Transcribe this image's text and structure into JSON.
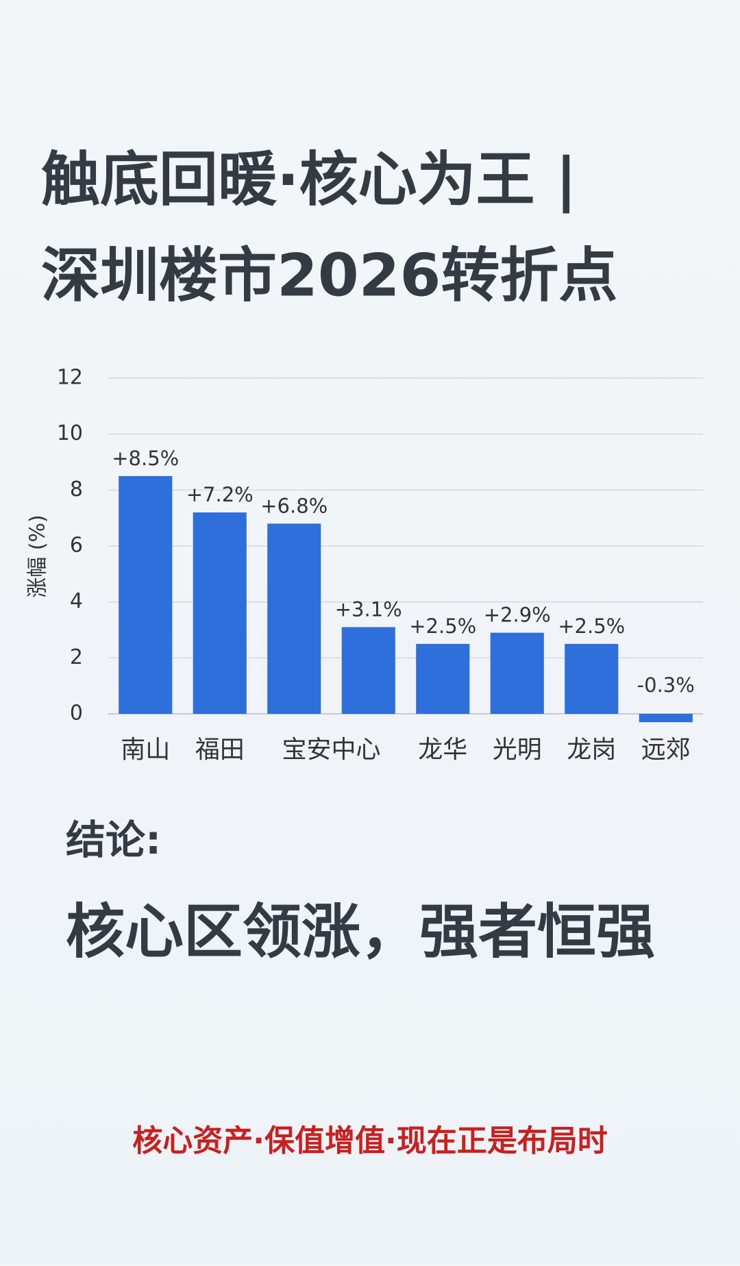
{
  "header": {
    "title_lines": [
      "触底回暖·核心为王 |",
      "深圳楼市2026转折点"
    ]
  },
  "chart_data": {
    "type": "bar",
    "y_label": "涨幅 (%)",
    "categories": [
      "南山",
      "福田",
      "宝安中心",
      null,
      "龙华",
      "光明",
      "龙岗",
      "远郊"
    ],
    "values": [
      8.5,
      7.2,
      6.8,
      3.1,
      2.5,
      2.9,
      2.5,
      -0.3
    ],
    "value_labels": [
      "+8.5%",
      "+7.2%",
      "+6.8%",
      "+3.1%",
      "+2.5%",
      "+2.9%",
      "+2.5%",
      "-0.3%"
    ],
    "color": "#2f6fdc",
    "ylim": [
      0,
      12
    ],
    "yticks": [
      0,
      2,
      4,
      6,
      8,
      10,
      12
    ],
    "grid": true
  },
  "conclusion": {
    "label": "结论:",
    "text": "核心区领涨，强者恒强"
  },
  "footer": "核心资产·保值增值·现在正是布局时"
}
